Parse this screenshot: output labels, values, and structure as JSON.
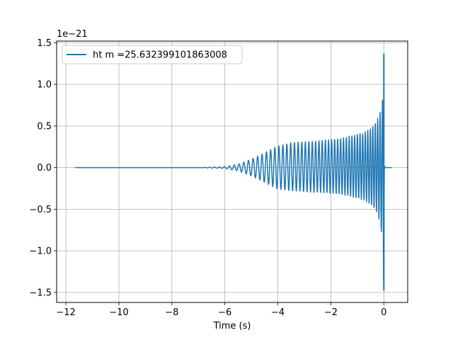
{
  "chart_data": {
    "type": "line",
    "xlabel": "Time (s)",
    "ylabel": "",
    "offset_text": "1e−21",
    "xlim": [
      -12.35,
      0.9
    ],
    "ylim": [
      -1.62,
      1.52
    ],
    "x_ticks": [
      -12,
      -10,
      -8,
      -6,
      -4,
      -2,
      0
    ],
    "x_tick_labels": [
      "−12",
      "−10",
      "−8",
      "−6",
      "−4",
      "−2",
      "0"
    ],
    "y_ticks": [
      -1.5,
      -1.0,
      -0.5,
      0.0,
      0.5,
      1.0,
      1.5
    ],
    "y_tick_labels": [
      "−1.5",
      "−1.0",
      "−0.5",
      "0.0",
      "0.5",
      "1.0",
      "1.5"
    ],
    "grid": true,
    "legend_position": "top-left",
    "series": [
      {
        "name": "ht m =25.632399101863008",
        "color": "#1f77b4",
        "x_range": [
          -11.65,
          0.3
        ],
        "envelope": {
          "t": [
            -11.65,
            -7.0,
            -6.0,
            -5.5,
            -5.0,
            -4.5,
            -4.0,
            -3.5,
            -3.0,
            -2.5,
            -2.0,
            -1.5,
            -1.0,
            -0.7,
            -0.5,
            -0.3,
            -0.15,
            -0.05,
            0.0,
            0.02,
            0.05,
            0.3
          ],
          "upper": [
            0.0,
            0.0,
            0.01,
            0.04,
            0.1,
            0.18,
            0.26,
            0.3,
            0.31,
            0.32,
            0.34,
            0.36,
            0.4,
            0.43,
            0.48,
            0.55,
            0.65,
            0.85,
            1.37,
            0.05,
            0.0,
            0.0
          ],
          "lower": [
            0.0,
            0.0,
            -0.01,
            -0.04,
            -0.1,
            -0.18,
            -0.26,
            -0.28,
            -0.29,
            -0.3,
            -0.31,
            -0.33,
            -0.37,
            -0.4,
            -0.45,
            -0.52,
            -0.65,
            -0.9,
            -1.48,
            -0.05,
            0.0,
            0.0
          ]
        }
      }
    ]
  }
}
